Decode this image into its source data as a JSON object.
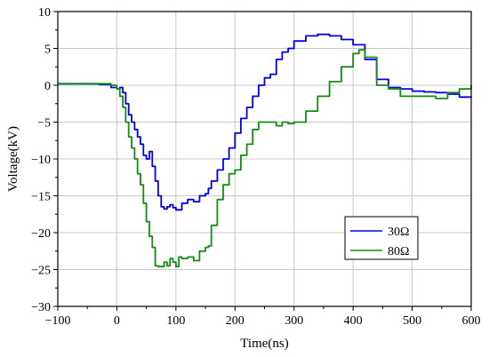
{
  "chart_data": {
    "type": "line",
    "title": "",
    "xlabel": "Time(ns)",
    "ylabel": "Voltage(kV)",
    "xlim": [
      -100,
      600
    ],
    "ylim": [
      -30,
      10
    ],
    "x_ticks": [
      -100,
      0,
      100,
      200,
      300,
      400,
      500,
      600
    ],
    "y_ticks": [
      -30,
      -25,
      -20,
      -15,
      -10,
      -5,
      0,
      5,
      10
    ],
    "x_tick_labels": [
      "−100",
      "0",
      "100",
      "200",
      "300",
      "400",
      "500",
      "600"
    ],
    "y_tick_labels": [
      "−30",
      "−25",
      "−20",
      "−15",
      "−10",
      "−5",
      "0",
      "5",
      "10"
    ],
    "grid": true,
    "legend_position": "lower-right",
    "series": [
      {
        "name": "30Ω",
        "color": "#0000e6",
        "x": [
          -100,
          -60,
          -30,
          -10,
          0,
          5,
          10,
          15,
          20,
          25,
          30,
          35,
          40,
          45,
          50,
          55,
          60,
          65,
          70,
          75,
          80,
          85,
          90,
          95,
          100,
          110,
          120,
          130,
          140,
          150,
          155,
          160,
          170,
          180,
          190,
          200,
          210,
          220,
          230,
          240,
          250,
          260,
          270,
          280,
          290,
          300,
          320,
          340,
          360,
          380,
          400,
          420,
          440,
          460,
          480,
          500,
          520,
          540,
          560,
          580,
          600
        ],
        "y": [
          0.2,
          0.2,
          0.1,
          -0.3,
          -0.5,
          -0.3,
          -1.0,
          -2.5,
          -4.0,
          -5.0,
          -6.0,
          -7.0,
          -8.0,
          -9.5,
          -10.0,
          -9.0,
          -11.0,
          -13.0,
          -15.0,
          -16.5,
          -16.8,
          -16.5,
          -16.2,
          -16.6,
          -16.9,
          -16.0,
          -15.5,
          -15.8,
          -15.0,
          -14.7,
          -14.0,
          -13.0,
          -11.5,
          -10.0,
          -8.5,
          -6.5,
          -4.5,
          -3.0,
          -1.5,
          0.0,
          1.0,
          1.5,
          3.5,
          4.5,
          5.0,
          6.0,
          6.7,
          6.9,
          6.7,
          6.2,
          5.5,
          3.5,
          0.8,
          -0.3,
          -0.5,
          -0.8,
          -0.9,
          -1.0,
          -1.2,
          -1.6,
          -1.5
        ]
      },
      {
        "name": "80Ω",
        "color": "#128c12",
        "x": [
          -100,
          -60,
          -30,
          -10,
          0,
          5,
          10,
          15,
          20,
          25,
          30,
          35,
          40,
          45,
          50,
          55,
          60,
          65,
          70,
          75,
          80,
          85,
          90,
          95,
          100,
          105,
          110,
          120,
          130,
          140,
          150,
          155,
          160,
          170,
          180,
          190,
          200,
          210,
          220,
          230,
          240,
          250,
          260,
          270,
          280,
          290,
          300,
          320,
          340,
          360,
          380,
          400,
          410,
          420,
          440,
          460,
          480,
          500,
          520,
          540,
          560,
          580,
          600
        ],
        "y": [
          0.2,
          0.2,
          0.2,
          0.0,
          -0.5,
          -1.5,
          -3.0,
          -5.0,
          -7.0,
          -8.5,
          -10.0,
          -12.0,
          -13.5,
          -16.0,
          -18.5,
          -20.5,
          -22.0,
          -24.5,
          -24.6,
          -24.6,
          -24.0,
          -24.5,
          -23.5,
          -24.0,
          -24.6,
          -23.3,
          -23.5,
          -23.3,
          -23.8,
          -22.5,
          -22.0,
          -21.8,
          -19.0,
          -15.5,
          -13.5,
          -12.0,
          -11.5,
          -9.5,
          -8.0,
          -6.0,
          -5.0,
          -5.0,
          -5.0,
          -5.5,
          -5.0,
          -5.2,
          -5.0,
          -3.5,
          -1.5,
          0.5,
          2.5,
          4.3,
          4.8,
          3.8,
          0.0,
          -0.5,
          -1.5,
          -1.5,
          -1.5,
          -1.8,
          -1.0,
          -0.5,
          0.0
        ]
      }
    ]
  }
}
